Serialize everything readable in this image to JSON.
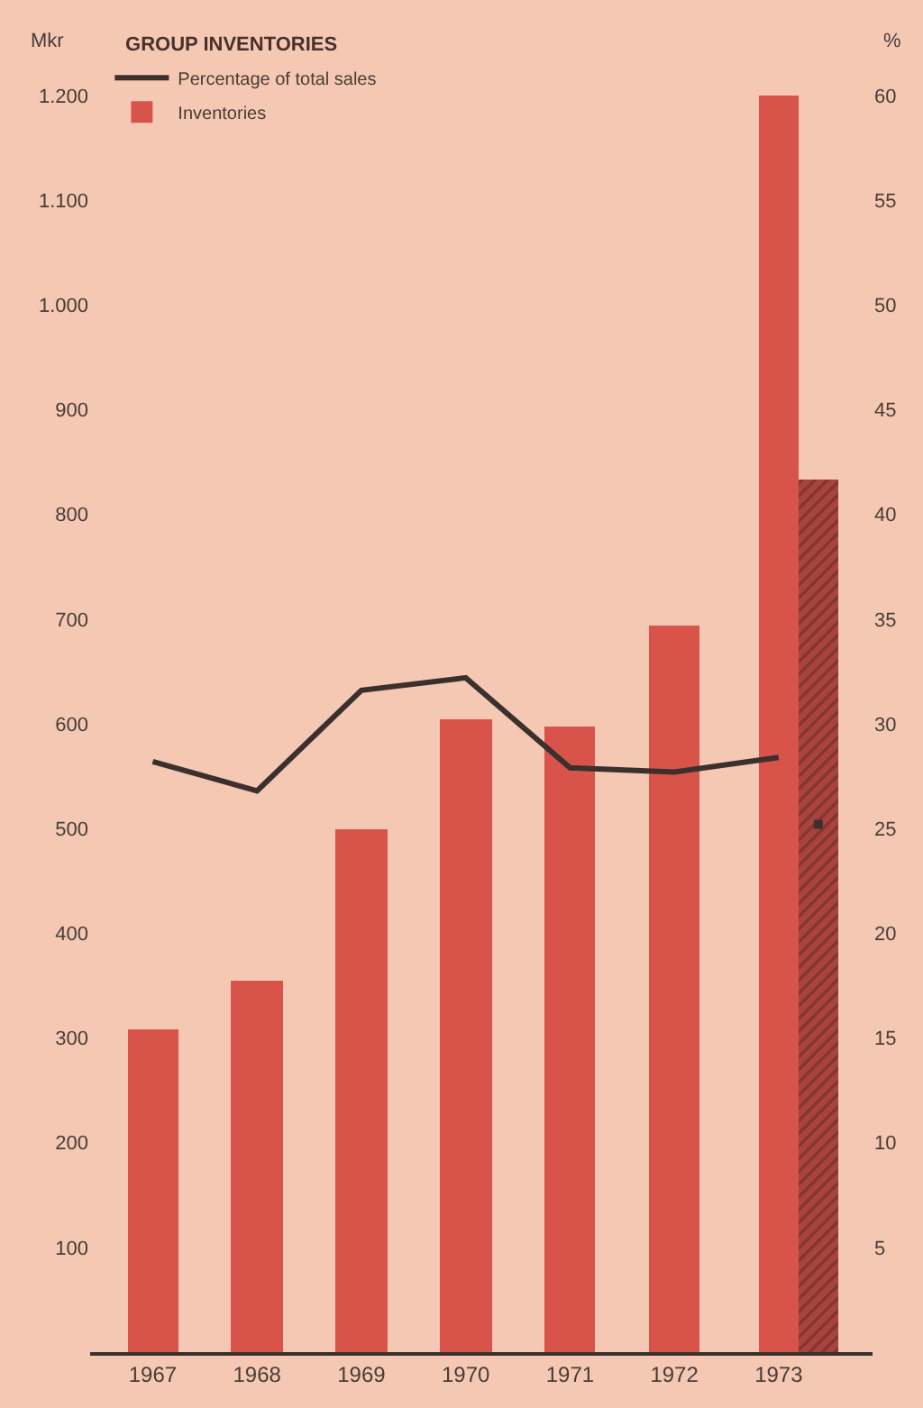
{
  "chart_data": {
    "type": "bar",
    "title": "GROUP INVENTORIES",
    "ylabel": "Mkr",
    "y2label": "%",
    "categories": [
      "1967",
      "1968",
      "1969",
      "1970",
      "1971",
      "1972",
      "1973"
    ],
    "series": [
      {
        "name": "Percentage of total sales",
        "type": "line",
        "axis": "y2",
        "color": "#3b302e",
        "values": [
          28.2,
          26.8,
          31.6,
          32.2,
          27.9,
          27.7,
          28.4
        ]
      },
      {
        "name": "Inventories",
        "color": "#d8544b",
        "values": [
          308,
          355,
          500,
          605,
          597,
          693,
          1200
        ]
      },
      {
        "color": "#a9443d",
        "values": [
          null,
          null,
          null,
          null,
          null,
          null,
          833
        ]
      },
      {
        "type": "scatter",
        "axis": "y2",
        "color": "#3b302e",
        "marker": "square",
        "values": [
          null,
          null,
          null,
          null,
          null,
          null,
          25.2
        ]
      }
    ],
    "ylim": [
      0,
      1200
    ],
    "yticks": [
      100,
      200,
      300,
      400,
      500,
      600,
      700,
      800,
      900,
      {
        "value": 1000,
        "label": "1.000"
      },
      {
        "value": 1100,
        "label": "1.100"
      },
      {
        "value": 1200,
        "label": "1.200"
      }
    ],
    "y2lim": [
      0,
      60
    ],
    "y2ticks": [
      5,
      10,
      15,
      20,
      25,
      30,
      35,
      40,
      45,
      50,
      55,
      60
    ],
    "legend": "top left",
    "grid": false
  }
}
